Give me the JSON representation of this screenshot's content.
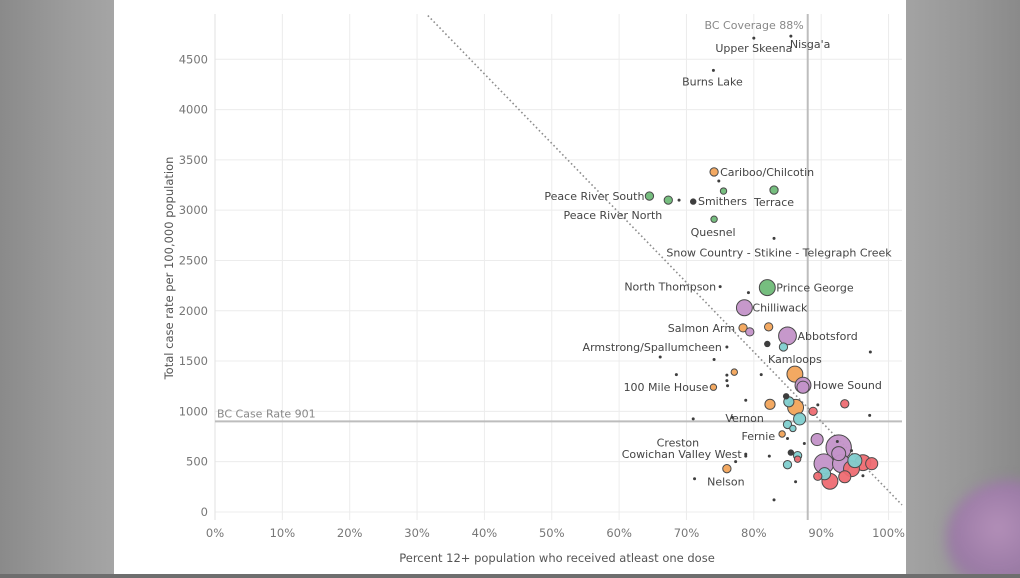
{
  "chart_data": {
    "type": "scatter",
    "title": "",
    "xlabel": "Percent 12+ population who received atleast one dose",
    "ylabel": "Total case rate per 100,000 population",
    "xlim": [
      0,
      1.02
    ],
    "ylim": [
      -80,
      4950
    ],
    "x_ticks": [
      {
        "value": 0.0,
        "label": "0%"
      },
      {
        "value": 0.1,
        "label": "10%"
      },
      {
        "value": 0.2,
        "label": "20%"
      },
      {
        "value": 0.3,
        "label": "30%"
      },
      {
        "value": 0.4,
        "label": "40%"
      },
      {
        "value": 0.5,
        "label": "50%"
      },
      {
        "value": 0.6,
        "label": "60%"
      },
      {
        "value": 0.7,
        "label": "70%"
      },
      {
        "value": 0.8,
        "label": "80%"
      },
      {
        "value": 0.9,
        "label": "90%"
      },
      {
        "value": 1.0,
        "label": "100%"
      }
    ],
    "y_ticks": [
      {
        "value": 0,
        "label": "0"
      },
      {
        "value": 500,
        "label": "500"
      },
      {
        "value": 1000,
        "label": "1000"
      },
      {
        "value": 1500,
        "label": "1500"
      },
      {
        "value": 2000,
        "label": "2000"
      },
      {
        "value": 2500,
        "label": "2500"
      },
      {
        "value": 3000,
        "label": "3000"
      },
      {
        "value": 3500,
        "label": "3500"
      },
      {
        "value": 4000,
        "label": "4000"
      },
      {
        "value": 4500,
        "label": "4500"
      }
    ],
    "grid": true,
    "colors": {
      "green": "#6fba78",
      "orange": "#f2a45a",
      "purple": "#c392c8",
      "teal": "#7fcfcf",
      "red": "#ee6b72",
      "tiny": "#555555"
    },
    "reference_lines": [
      {
        "name": "coverage",
        "orientation": "vertical",
        "value": 0.88,
        "label": "BC Coverage 88%"
      },
      {
        "name": "case-rate",
        "orientation": "horizontal",
        "value": 901,
        "label": "BC Case Rate 901"
      }
    ],
    "trend_line": {
      "from": [
        0.316,
        4935
      ],
      "to": [
        1.02,
        70
      ]
    },
    "points": [
      {
        "label": "Nisga'a",
        "x": 0.855,
        "y": 4730,
        "size": 1,
        "color": "tiny"
      },
      {
        "label": "Upper Skeena",
        "x": 0.8,
        "y": 4710,
        "size": 1,
        "color": "tiny"
      },
      {
        "label": "Burns Lake",
        "x": 0.74,
        "y": 4390,
        "size": 1,
        "color": "tiny"
      },
      {
        "label": "Cariboo/Chilcotin",
        "x": 0.741,
        "y": 3380,
        "size": 3,
        "color": "orange"
      },
      {
        "label": "",
        "x": 0.748,
        "y": 3290,
        "size": 1,
        "color": "tiny"
      },
      {
        "label": "Terrace",
        "x": 0.83,
        "y": 3200,
        "size": 3,
        "color": "green"
      },
      {
        "label": "Smithers",
        "x": 0.755,
        "y": 3190,
        "size": 2,
        "color": "green"
      },
      {
        "label": "Peace River South",
        "x": 0.645,
        "y": 3140,
        "size": 3,
        "color": "green"
      },
      {
        "label": "Peace River North",
        "x": 0.673,
        "y": 3100,
        "size": 3,
        "color": "green"
      },
      {
        "label": "",
        "x": 0.689,
        "y": 3100,
        "size": 1,
        "color": "tiny"
      },
      {
        "label": "",
        "x": 0.71,
        "y": 3085,
        "size": 2,
        "color": "tiny"
      },
      {
        "label": "Quesnel",
        "x": 0.741,
        "y": 2910,
        "size": 2,
        "color": "green"
      },
      {
        "label": "Snow Country - Stikine - Telegraph Creek",
        "x": 0.83,
        "y": 2720,
        "size": 1,
        "color": "tiny"
      },
      {
        "label": "North Thompson",
        "x": 0.75,
        "y": 2240,
        "size": 1,
        "color": "tiny"
      },
      {
        "label": "",
        "x": 0.792,
        "y": 2180,
        "size": 1,
        "color": "tiny"
      },
      {
        "label": "Prince George",
        "x": 0.82,
        "y": 2230,
        "size": 7,
        "color": "green"
      },
      {
        "label": "Chilliwack",
        "x": 0.786,
        "y": 2030,
        "size": 7,
        "color": "purple"
      },
      {
        "label": "Salmon Arm",
        "x": 0.784,
        "y": 1830,
        "size": 3,
        "color": "orange"
      },
      {
        "label": "",
        "x": 0.794,
        "y": 1790,
        "size": 3,
        "color": "purple"
      },
      {
        "label": "",
        "x": 0.822,
        "y": 1840,
        "size": 3,
        "color": "orange"
      },
      {
        "label": "Abbotsford",
        "x": 0.85,
        "y": 1750,
        "size": 8,
        "color": "purple"
      },
      {
        "label": "",
        "x": 0.82,
        "y": 1670,
        "size": 2,
        "color": "tiny"
      },
      {
        "label": "",
        "x": 0.844,
        "y": 1640,
        "size": 3,
        "color": "teal"
      },
      {
        "label": "Armstrong/Spallumcheen",
        "x": 0.76,
        "y": 1640,
        "size": 1,
        "color": "tiny"
      },
      {
        "label": "",
        "x": 0.661,
        "y": 1540,
        "size": 1,
        "color": "tiny"
      },
      {
        "label": "",
        "x": 0.741,
        "y": 1515,
        "size": 1,
        "color": "tiny"
      },
      {
        "label": "",
        "x": 0.973,
        "y": 1590,
        "size": 1,
        "color": "tiny"
      },
      {
        "label": "Kamloops",
        "x": 0.861,
        "y": 1370,
        "size": 7,
        "color": "orange"
      },
      {
        "label": "",
        "x": 0.771,
        "y": 1390,
        "size": 2,
        "color": "orange"
      },
      {
        "label": "",
        "x": 0.685,
        "y": 1365,
        "size": 1,
        "color": "tiny"
      },
      {
        "label": "",
        "x": 0.76,
        "y": 1360,
        "size": 1,
        "color": "tiny"
      },
      {
        "label": "",
        "x": 0.76,
        "y": 1305,
        "size": 1,
        "color": "tiny"
      },
      {
        "label": "",
        "x": 0.761,
        "y": 1255,
        "size": 1,
        "color": "tiny"
      },
      {
        "label": "",
        "x": 0.811,
        "y": 1365,
        "size": 1,
        "color": "tiny"
      },
      {
        "label": "Howe Sound",
        "x": 0.873,
        "y": 1260,
        "size": 7,
        "color": "purple"
      },
      {
        "label": "",
        "x": 0.873,
        "y": 1240,
        "size": 5,
        "color": "purple"
      },
      {
        "label": "100 Mile House",
        "x": 0.74,
        "y": 1240,
        "size": 2,
        "color": "orange"
      },
      {
        "label": "",
        "x": 0.848,
        "y": 1150,
        "size": 2,
        "color": "tiny"
      },
      {
        "label": "Vernon",
        "x": 0.852,
        "y": 1095,
        "size": 4,
        "color": "teal"
      },
      {
        "label": "",
        "x": 0.788,
        "y": 1110,
        "size": 1,
        "color": "tiny"
      },
      {
        "label": "",
        "x": 0.824,
        "y": 1070,
        "size": 4,
        "color": "orange"
      },
      {
        "label": "",
        "x": 0.862,
        "y": 1040,
        "size": 7,
        "color": "orange"
      },
      {
        "label": "",
        "x": 0.888,
        "y": 1000,
        "size": 3,
        "color": "red"
      },
      {
        "label": "",
        "x": 0.895,
        "y": 1065,
        "size": 1,
        "color": "tiny"
      },
      {
        "label": "",
        "x": 0.935,
        "y": 1075,
        "size": 3,
        "color": "red"
      },
      {
        "label": "",
        "x": 0.868,
        "y": 925,
        "size": 5,
        "color": "teal"
      },
      {
        "label": "",
        "x": 0.85,
        "y": 870,
        "size": 3,
        "color": "teal"
      },
      {
        "label": "",
        "x": 0.972,
        "y": 960,
        "size": 1,
        "color": "tiny"
      },
      {
        "label": "",
        "x": 0.71,
        "y": 925,
        "size": 1,
        "color": "tiny"
      },
      {
        "label": "",
        "x": 0.768,
        "y": 940,
        "size": 1,
        "color": "tiny"
      },
      {
        "label": "Creston",
        "x": 0.858,
        "y": 830,
        "size": 2,
        "color": "teal"
      },
      {
        "label": "Fernie",
        "x": 0.842,
        "y": 775,
        "size": 2,
        "color": "orange"
      },
      {
        "label": "",
        "x": 0.85,
        "y": 730,
        "size": 1,
        "color": "tiny"
      },
      {
        "label": "",
        "x": 0.875,
        "y": 680,
        "size": 1,
        "color": "tiny"
      },
      {
        "label": "",
        "x": 0.894,
        "y": 720,
        "size": 5,
        "color": "purple"
      },
      {
        "label": "",
        "x": 0.926,
        "y": 640,
        "size": 12,
        "color": "purple"
      },
      {
        "label": "",
        "x": 0.926,
        "y": 580,
        "size": 6,
        "color": "purple"
      },
      {
        "label": "",
        "x": 0.924,
        "y": 700,
        "size": 1,
        "color": "tiny"
      },
      {
        "label": "",
        "x": 0.945,
        "y": 610,
        "size": 1,
        "color": "tiny"
      },
      {
        "label": "",
        "x": 0.855,
        "y": 590,
        "size": 2,
        "color": "tiny"
      },
      {
        "label": "",
        "x": 0.865,
        "y": 560,
        "size": 3,
        "color": "teal"
      },
      {
        "label": "",
        "x": 0.865,
        "y": 525,
        "size": 2,
        "color": "red"
      },
      {
        "label": "Cowichan Valley West",
        "x": 0.788,
        "y": 575,
        "size": 1,
        "color": "tiny"
      },
      {
        "label": "",
        "x": 0.788,
        "y": 555,
        "size": 1,
        "color": "tiny"
      },
      {
        "label": "",
        "x": 0.823,
        "y": 555,
        "size": 1,
        "color": "tiny"
      },
      {
        "label": "",
        "x": 0.773,
        "y": 500,
        "size": 1,
        "color": "tiny"
      },
      {
        "label": "",
        "x": 0.85,
        "y": 470,
        "size": 3,
        "color": "teal"
      },
      {
        "label": "",
        "x": 0.904,
        "y": 480,
        "size": 9,
        "color": "purple"
      },
      {
        "label": "",
        "x": 0.93,
        "y": 480,
        "size": 8,
        "color": "purple"
      },
      {
        "label": "",
        "x": 0.95,
        "y": 510,
        "size": 6,
        "color": "teal"
      },
      {
        "label": "",
        "x": 0.962,
        "y": 490,
        "size": 7,
        "color": "red"
      },
      {
        "label": "",
        "x": 0.975,
        "y": 480,
        "size": 5,
        "color": "red"
      },
      {
        "label": "",
        "x": 0.945,
        "y": 430,
        "size": 7,
        "color": "red"
      },
      {
        "label": "",
        "x": 0.905,
        "y": 380,
        "size": 5,
        "color": "teal"
      },
      {
        "label": "",
        "x": 0.895,
        "y": 355,
        "size": 3,
        "color": "red"
      },
      {
        "label": "",
        "x": 0.935,
        "y": 350,
        "size": 5,
        "color": "red"
      },
      {
        "label": "",
        "x": 0.913,
        "y": 305,
        "size": 7,
        "color": "red"
      },
      {
        "label": "",
        "x": 0.962,
        "y": 360,
        "size": 1,
        "color": "tiny"
      },
      {
        "label": "Nelson",
        "x": 0.76,
        "y": 430,
        "size": 3,
        "color": "orange"
      },
      {
        "label": "",
        "x": 0.712,
        "y": 330,
        "size": 1,
        "color": "tiny"
      },
      {
        "label": "",
        "x": 0.862,
        "y": 300,
        "size": 1,
        "color": "tiny"
      },
      {
        "label": "",
        "x": 0.83,
        "y": 120,
        "size": 1,
        "color": "tiny"
      }
    ]
  }
}
